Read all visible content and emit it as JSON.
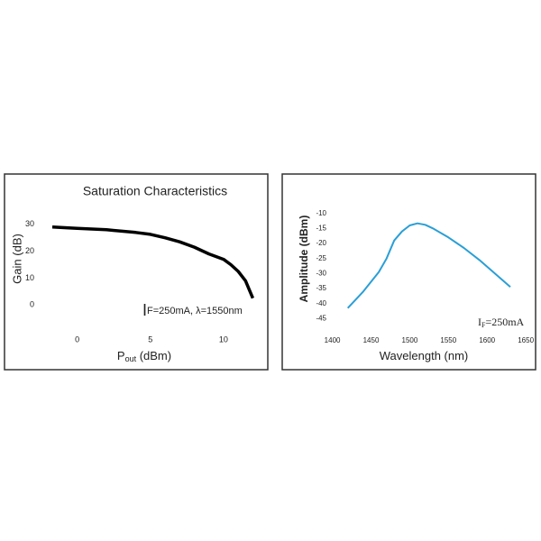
{
  "chart_data": [
    {
      "type": "line",
      "title": "Saturation Characteristics",
      "xlabel": [
        "P",
        "out",
        " (dBm)"
      ],
      "ylabel": "Gain (dB)",
      "annotation": [
        "I",
        "F=250mA,  λ=1550nm"
      ],
      "x": [
        -1.7,
        0,
        2,
        4,
        5,
        6,
        7,
        8,
        9,
        10,
        10.5,
        11,
        11.5,
        12
      ],
      "values": [
        29,
        28.5,
        28,
        27,
        26.3,
        25,
        23.5,
        21.5,
        19,
        17,
        15,
        12.5,
        9,
        2.5
      ],
      "color": "#000000",
      "xlim": [
        -2.5,
        12.9
      ],
      "ylim": [
        -9,
        38
      ],
      "xticks": [
        0,
        5,
        10
      ],
      "yticks": [
        0,
        10,
        20,
        30
      ]
    },
    {
      "type": "line",
      "xlabel": [
        "Wavelength (nm)"
      ],
      "ylabel": "Amplitude (dBm)",
      "annotation": [
        "I",
        "F",
        "=250mA"
      ],
      "x": [
        1420,
        1440,
        1460,
        1470,
        1480,
        1490,
        1500,
        1510,
        1520,
        1530,
        1550,
        1570,
        1590,
        1610,
        1630
      ],
      "values": [
        -41.5,
        -36,
        -29.5,
        -25,
        -19,
        -16,
        -14,
        -13.3,
        -13.8,
        -15,
        -18,
        -21.5,
        -25.5,
        -30,
        -34.5
      ],
      "color": "#2a9fd6",
      "xlim": [
        1390,
        1658
      ],
      "ylim": [
        -48.5,
        -6.5
      ],
      "xticks": [
        1400,
        1450,
        1500,
        1550,
        1600,
        1650
      ],
      "yticks": [
        -10,
        -15,
        -20,
        -25,
        -30,
        -35,
        -40,
        -45
      ]
    }
  ]
}
